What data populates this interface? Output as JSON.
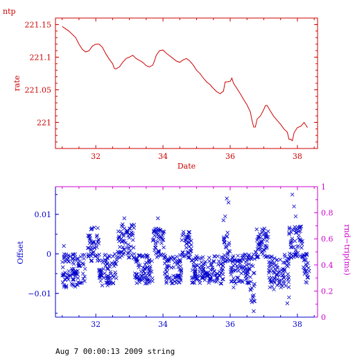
{
  "chart_data": [
    {
      "type": "line",
      "title": "ntp",
      "xlabel": "Date",
      "ylabel": "rate",
      "xlim": [
        30.8,
        38.6
      ],
      "ylim": [
        220.96,
        221.16
      ],
      "xticks": [
        32,
        34,
        36,
        38
      ],
      "yticks": [
        221,
        221.05,
        221.1,
        221.15
      ],
      "ytick_labels": [
        "221",
        "221.05",
        "221.1",
        "221.15"
      ],
      "color": "#cc0000",
      "x": [
        31.0,
        31.2,
        31.4,
        31.5,
        31.6,
        31.7,
        31.8,
        31.9,
        32.0,
        32.1,
        32.2,
        32.3,
        32.4,
        32.5,
        32.55,
        32.6,
        32.7,
        32.8,
        32.9,
        33.0,
        33.1,
        33.2,
        33.3,
        33.4,
        33.5,
        33.6,
        33.7,
        33.75,
        33.8,
        33.9,
        34.0,
        34.1,
        34.2,
        34.3,
        34.4,
        34.5,
        34.6,
        34.7,
        34.8,
        34.9,
        35.0,
        35.1,
        35.2,
        35.3,
        35.4,
        35.5,
        35.6,
        35.7,
        35.8,
        35.85,
        35.9,
        36.0,
        36.05,
        36.1,
        36.2,
        36.3,
        36.4,
        36.5,
        36.6,
        36.65,
        36.7,
        36.75,
        36.8,
        36.9,
        37.0,
        37.05,
        37.1,
        37.2,
        37.3,
        37.4,
        37.5,
        37.6,
        37.7,
        37.75,
        37.8,
        37.85,
        37.9,
        38.0,
        38.1,
        38.2,
        38.3
      ],
      "y": [
        221.147,
        221.14,
        221.13,
        221.12,
        221.112,
        221.108,
        221.11,
        221.117,
        221.12,
        221.12,
        221.115,
        221.105,
        221.097,
        221.09,
        221.083,
        221.082,
        221.085,
        221.092,
        221.098,
        221.1,
        221.103,
        221.098,
        221.095,
        221.092,
        221.087,
        221.085,
        221.088,
        221.095,
        221.103,
        221.11,
        221.111,
        221.106,
        221.102,
        221.098,
        221.094,
        221.092,
        221.096,
        221.098,
        221.094,
        221.088,
        221.08,
        221.075,
        221.068,
        221.062,
        221.058,
        221.052,
        221.047,
        221.044,
        221.048,
        221.062,
        221.062,
        221.063,
        221.068,
        221.06,
        221.052,
        221.044,
        221.035,
        221.027,
        221.016,
        221.003,
        220.993,
        220.993,
        221.005,
        221.01,
        221.02,
        221.026,
        221.026,
        221.017,
        221.009,
        221.003,
        220.997,
        220.99,
        220.985,
        220.974,
        220.974,
        220.972,
        220.984,
        220.992,
        220.994,
        221.0,
        220.992
      ]
    },
    {
      "type": "scatter",
      "xlim": [
        30.8,
        38.6
      ],
      "ylim": [
        -0.016,
        0.017
      ],
      "xticks": [
        32,
        34,
        36,
        38
      ],
      "yticks": [
        -0.01,
        0,
        0.01
      ],
      "ytick_labels": [
        "−0.01",
        "0",
        "0.01"
      ],
      "ylabel": "Offset",
      "y2label": "rnd−trip(ms)",
      "y2lim": [
        0,
        1
      ],
      "y2ticks": [
        0,
        0.2,
        0.4,
        0.6,
        0.8,
        1
      ],
      "y2tick_labels": [
        "0",
        "0.2",
        "0.4",
        "0.6",
        "0.8",
        "1"
      ],
      "marker": "x",
      "color": "#0000cc",
      "axis2_color": "#cc00cc",
      "clusters": [
        {
          "x_start": 31.0,
          "x_end": 31.7,
          "y_low": -0.0085,
          "y_high": 0.0
        },
        {
          "x_start": 31.75,
          "x_end": 32.1,
          "y_low": -0.002,
          "y_high": 0.007
        },
        {
          "x_start": 32.1,
          "x_end": 32.65,
          "y_low": -0.008,
          "y_high": 0.0
        },
        {
          "x_start": 32.65,
          "x_end": 33.15,
          "y_low": -0.001,
          "y_high": 0.0075
        },
        {
          "x_start": 33.15,
          "x_end": 33.7,
          "y_low": -0.0075,
          "y_high": 0.0
        },
        {
          "x_start": 33.7,
          "x_end": 34.05,
          "y_low": -0.001,
          "y_high": 0.0065
        },
        {
          "x_start": 34.05,
          "x_end": 34.55,
          "y_low": -0.0075,
          "y_high": 0.0
        },
        {
          "x_start": 34.55,
          "x_end": 34.85,
          "y_low": -0.001,
          "y_high": 0.006
        },
        {
          "x_start": 34.85,
          "x_end": 35.8,
          "y_low": -0.0075,
          "y_high": -0.0005
        },
        {
          "x_start": 35.8,
          "x_end": 36.0,
          "y_low": -0.002,
          "y_high": 0.006
        },
        {
          "x_start": 36.0,
          "x_end": 36.6,
          "y_low": -0.0075,
          "y_high": 0.0
        },
        {
          "x_start": 36.6,
          "x_end": 36.75,
          "y_low": -0.013,
          "y_high": 0.0
        },
        {
          "x_start": 36.75,
          "x_end": 37.15,
          "y_low": -0.001,
          "y_high": 0.0065
        },
        {
          "x_start": 37.15,
          "x_end": 37.75,
          "y_low": -0.0085,
          "y_high": 0.0
        },
        {
          "x_start": 37.75,
          "x_end": 38.15,
          "y_low": -0.001,
          "y_high": 0.007
        },
        {
          "x_start": 38.15,
          "x_end": 38.35,
          "y_low": -0.0075,
          "y_high": 0.0
        }
      ],
      "outliers": [
        {
          "x": 35.9,
          "y": 0.014
        },
        {
          "x": 35.95,
          "y": 0.013
        },
        {
          "x": 35.85,
          "y": 0.0095
        },
        {
          "x": 35.8,
          "y": 0.0085
        },
        {
          "x": 36.7,
          "y": -0.0145
        },
        {
          "x": 36.72,
          "y": -0.012
        },
        {
          "x": 36.68,
          "y": -0.011
        },
        {
          "x": 37.85,
          "y": 0.015
        },
        {
          "x": 37.9,
          "y": 0.012
        },
        {
          "x": 37.95,
          "y": 0.0095
        },
        {
          "x": 37.7,
          "y": -0.0125
        },
        {
          "x": 37.75,
          "y": -0.011
        },
        {
          "x": 32.85,
          "y": 0.009
        },
        {
          "x": 33.85,
          "y": 0.009
        },
        {
          "x": 31.05,
          "y": 0.002
        },
        {
          "x": 36.1,
          "y": -0.0085
        },
        {
          "x": 37.3,
          "y": -0.009
        }
      ]
    }
  ],
  "footer": "Aug  7 00:00:13 2009 string"
}
